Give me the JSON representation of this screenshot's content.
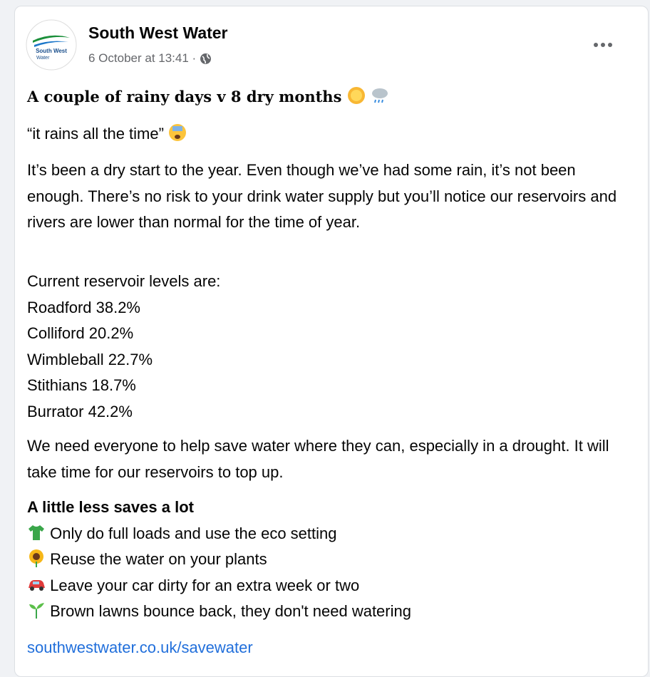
{
  "post": {
    "author": "South West Water",
    "logo": [
      "South West",
      "Water"
    ],
    "timestamp": "6 October at 13:41 ·",
    "heading": "A couple of rainy days v 8 dry months",
    "quote": "“it rains all the time”",
    "paragraph1": "It’s been a dry start to the year. Even though we’ve had some rain, it’s not been enough. There’s no risk to your drink water supply but you’ll notice our reservoirs and rivers are lower than normal for the time of year.",
    "levels_intro": "Current reservoir levels are:",
    "levels": [
      "Roadford 38.2%",
      "Colliford 20.2%",
      "Wimbleball 22.7%",
      "Stithians 18.7%",
      "Burrator 42.2%"
    ],
    "paragraph2": "We need everyone to help save water where they can, especially in a drought. It will take time for our reservoirs to top up.",
    "tips_title": "A little less saves a lot",
    "tips": [
      "Only do full loads and use the eco setting",
      "Reuse the water on your plants",
      "Leave your car dirty for an extra week or two",
      "Brown lawns bounce back, they don't need watering"
    ],
    "link": "southwestwater.co.uk/savewater"
  }
}
